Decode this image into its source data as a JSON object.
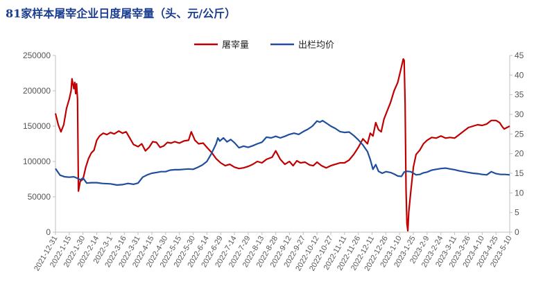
{
  "chart_data": {
    "type": "line",
    "title": "81家样本屠宰企业日度屠宰量（头、元/公斤）",
    "legend_position": "top-right",
    "grid": false,
    "x_ticks": [
      "2021-12-31",
      "2022-1-15",
      "2022-1-30",
      "2022-2-14",
      "2022-3-1",
      "2022-3-16",
      "2022-3-31",
      "2022-4-15",
      "2022-4-30",
      "2022-5-15",
      "2022-5-30",
      "2022-6-14",
      "2022-6-29",
      "2022-7-14",
      "2022-7-29",
      "2022-8-13",
      "2022-8-28",
      "2022-9-12",
      "2022-9-27",
      "2022-10-12",
      "2022-10-27",
      "2022-11-11",
      "2022-11-26",
      "2022-12-11",
      "2022-12-26",
      "2023-1-10",
      "2023-1-25",
      "2023-2-9",
      "2023-2-24",
      "2023-3-11",
      "2023-3-26",
      "2023-4-10",
      "2023-4-25",
      "2023-5-10"
    ],
    "y_left": {
      "ylim": [
        0,
        250000
      ],
      "ticks": [
        "0",
        "50000",
        "100000",
        "150000",
        "200000",
        "250000"
      ]
    },
    "y_right": {
      "ylim": [
        0,
        45
      ],
      "ticks": [
        "0",
        "5",
        "10",
        "15",
        "20",
        "25",
        "30",
        "35",
        "40",
        "45"
      ]
    },
    "series": [
      {
        "name": "屠宰量",
        "axis": "left",
        "color": "#c00000",
        "points": [
          [
            "2021-12-31",
            168000
          ],
          [
            "2022-1-3",
            152000
          ],
          [
            "2022-1-6",
            142000
          ],
          [
            "2022-1-9",
            152000
          ],
          [
            "2022-1-12",
            175000
          ],
          [
            "2022-1-15",
            188000
          ],
          [
            "2022-1-17",
            200000
          ],
          [
            "2022-1-18",
            217000
          ],
          [
            "2022-1-19",
            210000
          ],
          [
            "2022-1-20",
            203000
          ],
          [
            "2022-1-21",
            212000
          ],
          [
            "2022-1-22",
            196000
          ],
          [
            "2022-1-23",
            210000
          ],
          [
            "2022-1-24",
            188000
          ],
          [
            "2022-1-25",
            58000
          ],
          [
            "2022-1-27",
            72000
          ],
          [
            "2022-1-30",
            75000
          ],
          [
            "2022-2-2",
            92000
          ],
          [
            "2022-2-5",
            104000
          ],
          [
            "2022-2-8",
            112000
          ],
          [
            "2022-2-11",
            116000
          ],
          [
            "2022-2-14",
            130000
          ],
          [
            "2022-2-17",
            136000
          ],
          [
            "2022-2-21",
            140000
          ],
          [
            "2022-2-25",
            138000
          ],
          [
            "2022-3-1",
            141000
          ],
          [
            "2022-3-5",
            139000
          ],
          [
            "2022-3-10",
            143000
          ],
          [
            "2022-3-14",
            140000
          ],
          [
            "2022-3-18",
            142000
          ],
          [
            "2022-3-22",
            133000
          ],
          [
            "2022-3-26",
            124000
          ],
          [
            "2022-3-31",
            121000
          ],
          [
            "2022-4-4",
            125000
          ],
          [
            "2022-4-8",
            115000
          ],
          [
            "2022-4-12",
            120000
          ],
          [
            "2022-4-16",
            128000
          ],
          [
            "2022-4-20",
            127000
          ],
          [
            "2022-4-24",
            120000
          ],
          [
            "2022-4-28",
            122000
          ],
          [
            "2022-5-2",
            127000
          ],
          [
            "2022-5-6",
            126000
          ],
          [
            "2022-5-10",
            128000
          ],
          [
            "2022-5-15",
            126000
          ],
          [
            "2022-5-20",
            129000
          ],
          [
            "2022-5-25",
            130000
          ],
          [
            "2022-5-28",
            142000
          ],
          [
            "2022-6-1",
            130000
          ],
          [
            "2022-6-5",
            125000
          ],
          [
            "2022-6-10",
            126000
          ],
          [
            "2022-6-14",
            120000
          ],
          [
            "2022-6-19",
            113000
          ],
          [
            "2022-6-24",
            104000
          ],
          [
            "2022-6-29",
            98000
          ],
          [
            "2022-7-4",
            94000
          ],
          [
            "2022-7-9",
            96000
          ],
          [
            "2022-7-14",
            92000
          ],
          [
            "2022-7-19",
            90000
          ],
          [
            "2022-7-24",
            91000
          ],
          [
            "2022-7-29",
            93000
          ],
          [
            "2022-8-3",
            96000
          ],
          [
            "2022-8-8",
            100000
          ],
          [
            "2022-8-13",
            98000
          ],
          [
            "2022-8-18",
            103000
          ],
          [
            "2022-8-24",
            106000
          ],
          [
            "2022-8-28",
            115000
          ],
          [
            "2022-9-2",
            103000
          ],
          [
            "2022-9-7",
            96000
          ],
          [
            "2022-9-12",
            100000
          ],
          [
            "2022-9-16",
            94000
          ],
          [
            "2022-9-20",
            101000
          ],
          [
            "2022-9-24",
            98000
          ],
          [
            "2022-9-29",
            99000
          ],
          [
            "2022-10-4",
            95000
          ],
          [
            "2022-10-8",
            94000
          ],
          [
            "2022-10-12",
            99000
          ],
          [
            "2022-10-17",
            94000
          ],
          [
            "2022-10-22",
            91000
          ],
          [
            "2022-10-27",
            94000
          ],
          [
            "2022-11-1",
            96000
          ],
          [
            "2022-11-6",
            98000
          ],
          [
            "2022-11-11",
            98000
          ],
          [
            "2022-11-16",
            102000
          ],
          [
            "2022-11-21",
            110000
          ],
          [
            "2022-11-26",
            120000
          ],
          [
            "2022-12-1",
            132000
          ],
          [
            "2022-12-6",
            125000
          ],
          [
            "2022-12-9",
            140000
          ],
          [
            "2022-12-12",
            136000
          ],
          [
            "2022-12-15",
            155000
          ],
          [
            "2022-12-18",
            145000
          ],
          [
            "2022-12-21",
            142000
          ],
          [
            "2022-12-24",
            160000
          ],
          [
            "2022-12-27",
            170000
          ],
          [
            "2022-12-31",
            183000
          ],
          [
            "2023-1-4",
            200000
          ],
          [
            "2023-1-8",
            212000
          ],
          [
            "2023-1-11",
            228000
          ],
          [
            "2023-1-14",
            245000
          ],
          [
            "2023-1-15",
            243000
          ],
          [
            "2023-1-16",
            180000
          ],
          [
            "2023-1-17",
            60000
          ],
          [
            "2023-1-18",
            12000
          ],
          [
            "2023-1-19",
            2000
          ],
          [
            "2023-1-20",
            28000
          ],
          [
            "2023-1-22",
            55000
          ],
          [
            "2023-1-25",
            92000
          ],
          [
            "2023-1-28",
            110000
          ],
          [
            "2023-2-1",
            116000
          ],
          [
            "2023-2-5",
            125000
          ],
          [
            "2023-2-9",
            130000
          ],
          [
            "2023-2-14",
            134000
          ],
          [
            "2023-2-19",
            133000
          ],
          [
            "2023-2-24",
            136000
          ],
          [
            "2023-3-1",
            133000
          ],
          [
            "2023-3-6",
            134000
          ],
          [
            "2023-3-11",
            133000
          ],
          [
            "2023-3-16",
            138000
          ],
          [
            "2023-3-21",
            143000
          ],
          [
            "2023-3-26",
            148000
          ],
          [
            "2023-3-31",
            150000
          ],
          [
            "2023-4-5",
            152000
          ],
          [
            "2023-4-10",
            151000
          ],
          [
            "2023-4-15",
            153000
          ],
          [
            "2023-4-20",
            158000
          ],
          [
            "2023-4-25",
            158000
          ],
          [
            "2023-4-29",
            155000
          ],
          [
            "2023-5-2",
            149000
          ],
          [
            "2023-5-4",
            146000
          ],
          [
            "2023-5-7",
            148000
          ],
          [
            "2023-5-10",
            150000
          ]
        ]
      },
      {
        "name": "出栏均价",
        "axis": "right",
        "color": "#1f4e9c",
        "points": [
          [
            "2021-12-31",
            16.2
          ],
          [
            "2022-1-5",
            14.5
          ],
          [
            "2022-1-10",
            14.1
          ],
          [
            "2022-1-15",
            14.0
          ],
          [
            "2022-1-20",
            14.1
          ],
          [
            "2022-1-25",
            13.6
          ],
          [
            "2022-1-27",
            13.3
          ],
          [
            "2022-1-30",
            13.8
          ],
          [
            "2022-2-3",
            12.5
          ],
          [
            "2022-2-8",
            12.6
          ],
          [
            "2022-2-14",
            12.6
          ],
          [
            "2022-2-20",
            12.4
          ],
          [
            "2022-3-1",
            12.3
          ],
          [
            "2022-3-8",
            12.0
          ],
          [
            "2022-3-14",
            12.1
          ],
          [
            "2022-3-20",
            12.4
          ],
          [
            "2022-3-26",
            12.2
          ],
          [
            "2022-3-31",
            12.5
          ],
          [
            "2022-4-5",
            14.0
          ],
          [
            "2022-4-10",
            14.6
          ],
          [
            "2022-4-15",
            15.0
          ],
          [
            "2022-4-20",
            15.2
          ],
          [
            "2022-4-25",
            15.4
          ],
          [
            "2022-4-30",
            15.4
          ],
          [
            "2022-5-5",
            15.8
          ],
          [
            "2022-5-10",
            15.9
          ],
          [
            "2022-5-15",
            15.9
          ],
          [
            "2022-5-20",
            16.0
          ],
          [
            "2022-5-25",
            16.1
          ],
          [
            "2022-5-30",
            16.0
          ],
          [
            "2022-6-4",
            16.5
          ],
          [
            "2022-6-9",
            17.1
          ],
          [
            "2022-6-14",
            18.0
          ],
          [
            "2022-6-19",
            20.0
          ],
          [
            "2022-6-24",
            22.5
          ],
          [
            "2022-6-26",
            24.0
          ],
          [
            "2022-6-28",
            23.2
          ],
          [
            "2022-7-2",
            24.0
          ],
          [
            "2022-7-6",
            23.0
          ],
          [
            "2022-7-10",
            23.6
          ],
          [
            "2022-7-14",
            22.8
          ],
          [
            "2022-7-19",
            21.5
          ],
          [
            "2022-7-24",
            21.9
          ],
          [
            "2022-7-29",
            21.6
          ],
          [
            "2022-8-3",
            22.0
          ],
          [
            "2022-8-8",
            22.5
          ],
          [
            "2022-8-13",
            22.9
          ],
          [
            "2022-8-18",
            24.2
          ],
          [
            "2022-8-23",
            24.0
          ],
          [
            "2022-8-28",
            24.4
          ],
          [
            "2022-9-2",
            24.0
          ],
          [
            "2022-9-7",
            24.4
          ],
          [
            "2022-9-12",
            24.9
          ],
          [
            "2022-9-17",
            25.2
          ],
          [
            "2022-9-22",
            24.9
          ],
          [
            "2022-9-27",
            25.6
          ],
          [
            "2022-10-2",
            26.2
          ],
          [
            "2022-10-7",
            27.0
          ],
          [
            "2022-10-12",
            28.3
          ],
          [
            "2022-10-15",
            28.0
          ],
          [
            "2022-10-18",
            28.4
          ],
          [
            "2022-10-22",
            27.8
          ],
          [
            "2022-10-27",
            27.0
          ],
          [
            "2022-11-1",
            26.4
          ],
          [
            "2022-11-6",
            25.6
          ],
          [
            "2022-11-11",
            25.4
          ],
          [
            "2022-11-16",
            25.5
          ],
          [
            "2022-11-21",
            24.6
          ],
          [
            "2022-11-26",
            23.5
          ],
          [
            "2022-12-1",
            22.2
          ],
          [
            "2022-12-6",
            20.5
          ],
          [
            "2022-12-9",
            18.5
          ],
          [
            "2022-12-12",
            16.0
          ],
          [
            "2022-12-15",
            17.2
          ],
          [
            "2022-12-18",
            15.5
          ],
          [
            "2022-12-22",
            15.0
          ],
          [
            "2022-12-26",
            15.4
          ],
          [
            "2022-12-31",
            15.2
          ],
          [
            "2023-1-4",
            14.8
          ],
          [
            "2023-1-8",
            14.3
          ],
          [
            "2023-1-12",
            14.2
          ],
          [
            "2023-1-15",
            15.3
          ],
          [
            "2023-1-18",
            15.5
          ],
          [
            "2023-1-22",
            15.4
          ],
          [
            "2023-1-25",
            15.0
          ],
          [
            "2023-1-28",
            14.6
          ],
          [
            "2023-2-1",
            14.7
          ],
          [
            "2023-2-5",
            15.1
          ],
          [
            "2023-2-9",
            15.3
          ],
          [
            "2023-2-14",
            15.8
          ],
          [
            "2023-2-19",
            16.0
          ],
          [
            "2023-2-24",
            16.2
          ],
          [
            "2023-3-1",
            16.3
          ],
          [
            "2023-3-6",
            16.1
          ],
          [
            "2023-3-11",
            15.9
          ],
          [
            "2023-3-16",
            15.6
          ],
          [
            "2023-3-21",
            15.4
          ],
          [
            "2023-3-26",
            15.2
          ],
          [
            "2023-3-31",
            15.0
          ],
          [
            "2023-4-5",
            14.9
          ],
          [
            "2023-4-10",
            14.7
          ],
          [
            "2023-4-15",
            14.6
          ],
          [
            "2023-4-20",
            15.4
          ],
          [
            "2023-4-25",
            14.9
          ],
          [
            "2023-4-30",
            14.7
          ],
          [
            "2023-5-5",
            14.7
          ],
          [
            "2023-5-10",
            14.6
          ]
        ]
      }
    ]
  }
}
